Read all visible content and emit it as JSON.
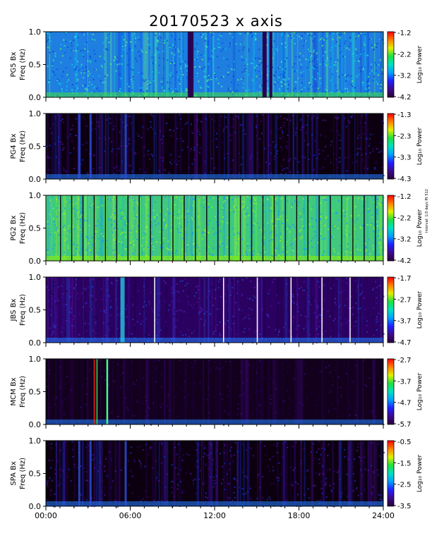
{
  "title": "20170523  x axis",
  "side_note": "Interval: 1/3 days fft 512",
  "colors": {
    "colorbar": [
      "#2a003a",
      "#3d0a8c",
      "#2020ff",
      "#00a0ff",
      "#00e0c0",
      "#20e040",
      "#e0f000",
      "#ff8000",
      "#ff0000"
    ],
    "background_dark": "#1a0030"
  },
  "chart_data": [
    {
      "type": "heatmap",
      "station": "PG5",
      "ylabel_line1": "PG5  Bx",
      "ylabel_line2": "Freq (Hz)",
      "cbar_label": "Log₁₀ Power",
      "cbar_ticks": [
        "-1.2",
        "-2.2",
        "-3.2",
        "-4.2"
      ],
      "clim": [
        -4.2,
        -1.2
      ],
      "ylim": [
        0,
        1
      ],
      "yticks": [
        "0.0",
        "0.5",
        "1.0"
      ],
      "xlim": [
        0,
        24
      ],
      "base": "cyan",
      "gaps": [
        [
          10.1,
          10.5
        ],
        [
          15.4,
          15.7
        ],
        [
          15.9,
          16.1
        ]
      ]
    },
    {
      "type": "heatmap",
      "station": "PG4",
      "ylabel_line1": "PG4  Bx",
      "ylabel_line2": "Freq (Hz)",
      "cbar_label": "Log₁₀ Power",
      "cbar_ticks": [
        "-1.3",
        "-2.3",
        "-3.3",
        "-4.3"
      ],
      "clim": [
        -4.3,
        -1.3
      ],
      "ylim": [
        0,
        1
      ],
      "yticks": [
        "0.0",
        "0.5",
        "1.0"
      ],
      "xlim": [
        0,
        24
      ],
      "base": "dark",
      "gaps": []
    },
    {
      "type": "heatmap",
      "station": "PG2",
      "ylabel_line1": "PG2  Bx",
      "ylabel_line2": "Freq (Hz)",
      "cbar_label": "Log₁₀ Power",
      "cbar_ticks": [
        "-1.2",
        "-2.2",
        "-3.2",
        "-4.2"
      ],
      "clim": [
        -4.2,
        -1.2
      ],
      "ylim": [
        0,
        1
      ],
      "yticks": [
        "0.0",
        "0.5",
        "1.0"
      ],
      "xlim": [
        0,
        24
      ],
      "base": "green",
      "gaps": []
    },
    {
      "type": "heatmap",
      "station": "JBS",
      "ylabel_line1": "JBS  Bx",
      "ylabel_line2": "Freq (Hz)",
      "cbar_label": "Log₁₀ Power",
      "cbar_ticks": [
        "-1.7",
        "-2.7",
        "-3.7",
        "-4.7"
      ],
      "clim": [
        -4.7,
        -1.7
      ],
      "ylim": [
        0,
        1
      ],
      "yticks": [
        "0.0",
        "0.5",
        "1.0"
      ],
      "xlim": [
        0,
        24
      ],
      "base": "purple",
      "gaps": []
    },
    {
      "type": "heatmap",
      "station": "MCM",
      "ylabel_line1": "MCM  Bx",
      "ylabel_line2": "Freq (Hz)",
      "cbar_label": "Log₁₀ Power",
      "cbar_ticks": [
        "-2.7",
        "-3.7",
        "-4.7",
        "-5.7"
      ],
      "clim": [
        -5.7,
        -2.7
      ],
      "ylim": [
        0,
        1
      ],
      "yticks": [
        "0.0",
        "0.5",
        "1.0"
      ],
      "xlim": [
        0,
        24
      ],
      "base": "verydark",
      "gaps": []
    },
    {
      "type": "heatmap",
      "station": "SPA",
      "ylabel_line1": "SPA  Bx",
      "ylabel_line2": "Freq (Hz)",
      "cbar_label": "Log₁₀ Power",
      "cbar_ticks": [
        "-0.5",
        "-1.5",
        "-2.5",
        "-3.5"
      ],
      "clim": [
        -3.5,
        -0.5
      ],
      "ylim": [
        0,
        1
      ],
      "yticks": [
        "0.0",
        "0.5",
        "1.0"
      ],
      "xlim": [
        0,
        24
      ],
      "base": "dark",
      "gaps": []
    }
  ],
  "xaxis": {
    "ticks": [
      "00:00",
      "06:00",
      "12:00",
      "18:00",
      "24:00"
    ],
    "values": [
      0,
      6,
      12,
      18,
      24
    ]
  }
}
